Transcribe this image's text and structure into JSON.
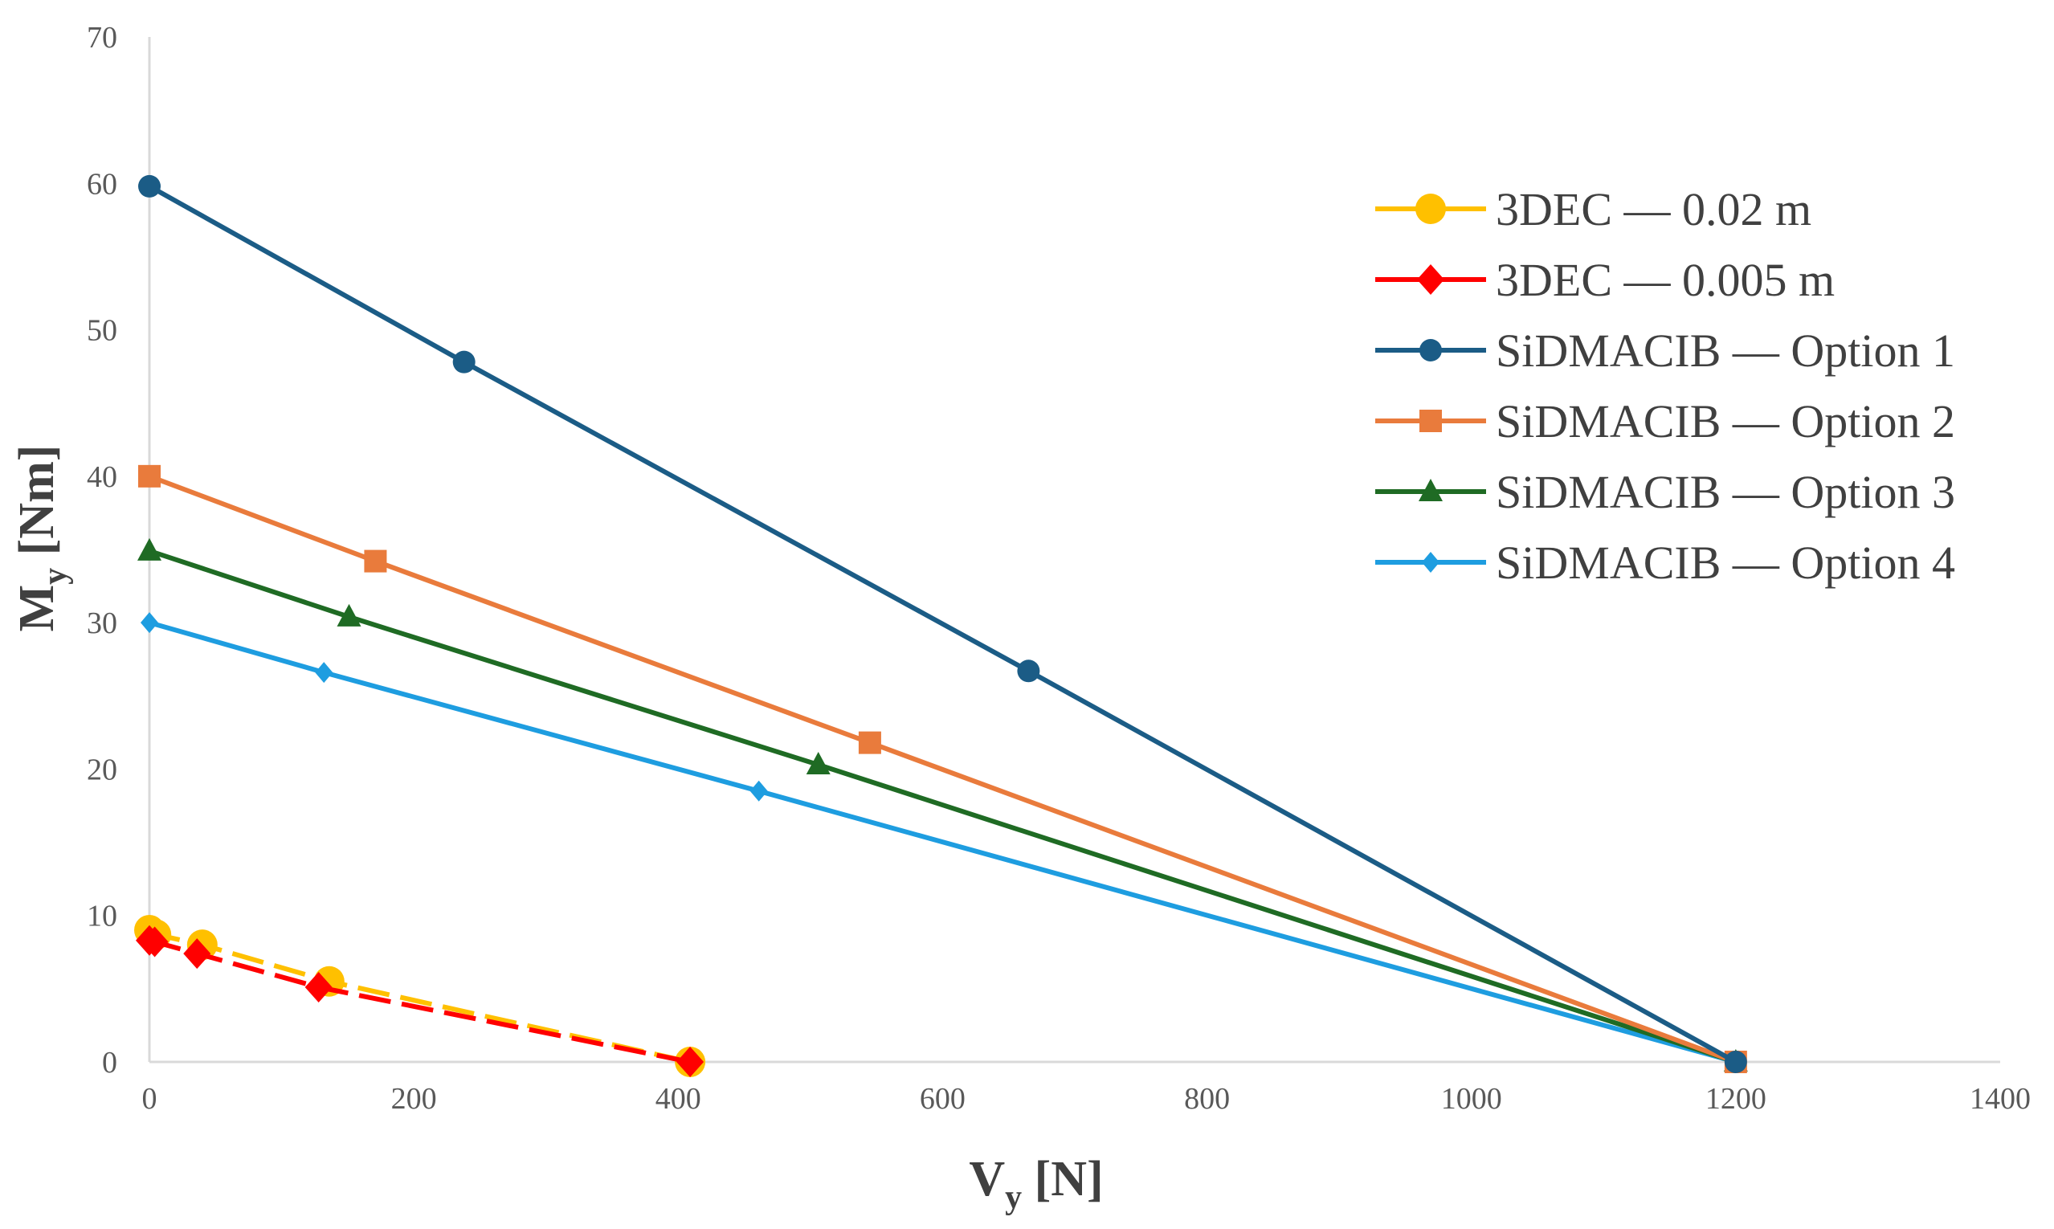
{
  "chart_data": {
    "type": "scatter",
    "title": "",
    "xlabel": {
      "main": "V",
      "sub": "y",
      "unit": " [N]"
    },
    "ylabel": {
      "main": "M",
      "sub": "y",
      "unit": " [Nm]"
    },
    "xlim": [
      0,
      1400
    ],
    "ylim": [
      0,
      70
    ],
    "xticks": [
      0,
      200,
      400,
      600,
      800,
      1000,
      1200,
      1400
    ],
    "yticks": [
      0,
      10,
      20,
      30,
      40,
      50,
      60,
      70
    ],
    "grid": false,
    "legend_position": "right",
    "series": [
      {
        "name": "SiDMACIB — Option 4",
        "color": "#1E9DE0",
        "marker": "diamond",
        "dashed": false,
        "points": [
          [
            0,
            30.0
          ],
          [
            132,
            26.6
          ],
          [
            461,
            18.5
          ],
          [
            1200,
            0
          ]
        ]
      },
      {
        "name": "SiDMACIB — Option 3",
        "color": "#1F6B24",
        "marker": "triangle",
        "dashed": false,
        "points": [
          [
            0,
            34.9
          ],
          [
            151,
            30.4
          ],
          [
            506,
            20.3
          ],
          [
            1200,
            0
          ]
        ]
      },
      {
        "name": "SiDMACIB — Option 2",
        "color": "#E97B3C",
        "marker": "square",
        "dashed": false,
        "points": [
          [
            0,
            40.0
          ],
          [
            171,
            34.2
          ],
          [
            545,
            21.8
          ],
          [
            1200,
            0
          ]
        ]
      },
      {
        "name": "SiDMACIB — Option 1",
        "color": "#1B5C86",
        "marker": "circle",
        "dashed": false,
        "points": [
          [
            0,
            59.8
          ],
          [
            238,
            47.8
          ],
          [
            665,
            26.7
          ],
          [
            1200,
            0
          ]
        ]
      },
      {
        "name": "3DEC — 0.02 m",
        "color": "#FFC000",
        "marker": "bigcircle",
        "dashed": true,
        "points": [
          [
            0,
            9.0
          ],
          [
            5,
            8.7
          ],
          [
            40,
            8.0
          ],
          [
            136,
            5.5
          ],
          [
            409,
            0
          ]
        ]
      },
      {
        "name": "3DEC — 0.005 m",
        "color": "#FF0000",
        "marker": "diamond-big",
        "dashed": true,
        "points": [
          [
            0,
            8.3
          ],
          [
            4,
            8.2
          ],
          [
            36,
            7.4
          ],
          [
            128,
            5.1
          ],
          [
            409,
            0
          ]
        ]
      }
    ],
    "legend_order": [
      "3DEC — 0.02 m",
      "3DEC — 0.005 m",
      "SiDMACIB — Option 1",
      "SiDMACIB — Option 2",
      "SiDMACIB — Option 3",
      "SiDMACIB — Option 4"
    ]
  }
}
